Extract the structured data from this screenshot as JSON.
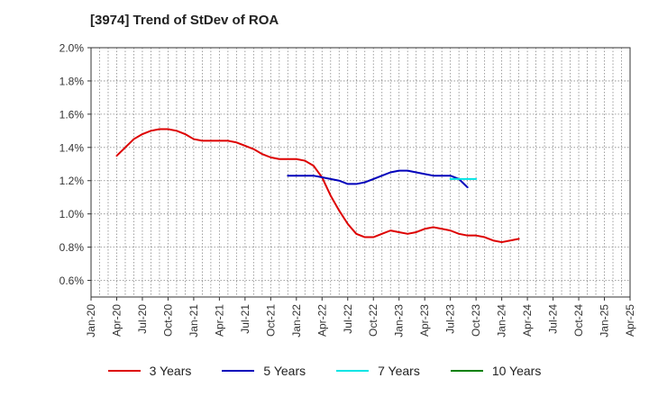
{
  "chart_data": {
    "type": "line",
    "title": "[3974]  Trend of StDev of ROA",
    "xlabel": "",
    "ylabel": "",
    "x_ticks": [
      "Jan-20",
      "Apr-20",
      "Jul-20",
      "Oct-20",
      "Jan-21",
      "Apr-21",
      "Jul-21",
      "Oct-21",
      "Jan-22",
      "Apr-22",
      "Jul-22",
      "Oct-22",
      "Jan-23",
      "Apr-23",
      "Jul-23",
      "Oct-23",
      "Jan-24",
      "Apr-24",
      "Jul-24",
      "Oct-24",
      "Jan-25",
      "Apr-25"
    ],
    "y_ticks": [
      "0.6%",
      "0.8%",
      "1.0%",
      "1.2%",
      "1.4%",
      "1.6%",
      "1.8%",
      "2.0%"
    ],
    "ylim": [
      0.5,
      2.0
    ],
    "grid": true,
    "legend_position": "bottom",
    "series": [
      {
        "name": "3 Years",
        "color": "#dd0000",
        "start_index": 3,
        "values": [
          1.35,
          1.4,
          1.45,
          1.48,
          1.5,
          1.51,
          1.51,
          1.5,
          1.48,
          1.45,
          1.44,
          1.44,
          1.44,
          1.44,
          1.43,
          1.41,
          1.39,
          1.36,
          1.34,
          1.33,
          1.33,
          1.33,
          1.32,
          1.29,
          1.22,
          1.11,
          1.02,
          0.94,
          0.88,
          0.86,
          0.86,
          0.88,
          0.9,
          0.89,
          0.88,
          0.89,
          0.91,
          0.92,
          0.91,
          0.9,
          0.88,
          0.87,
          0.87,
          0.86,
          0.84,
          0.83,
          0.84,
          0.85
        ]
      },
      {
        "name": "5 Years",
        "color": "#0000bb",
        "start_index": 23,
        "values": [
          1.23,
          1.23,
          1.23,
          1.23,
          1.22,
          1.21,
          1.2,
          1.18,
          1.18,
          1.19,
          1.21,
          1.23,
          1.25,
          1.26,
          1.26,
          1.25,
          1.24,
          1.23,
          1.23,
          1.23,
          1.21,
          1.16
        ]
      },
      {
        "name": "7 Years",
        "color": "#00e5e5",
        "start_index": 42,
        "values": [
          1.21,
          1.21,
          1.21,
          1.21
        ]
      },
      {
        "name": "10 Years",
        "color": "#008000",
        "start_index": 0,
        "values": []
      }
    ]
  }
}
